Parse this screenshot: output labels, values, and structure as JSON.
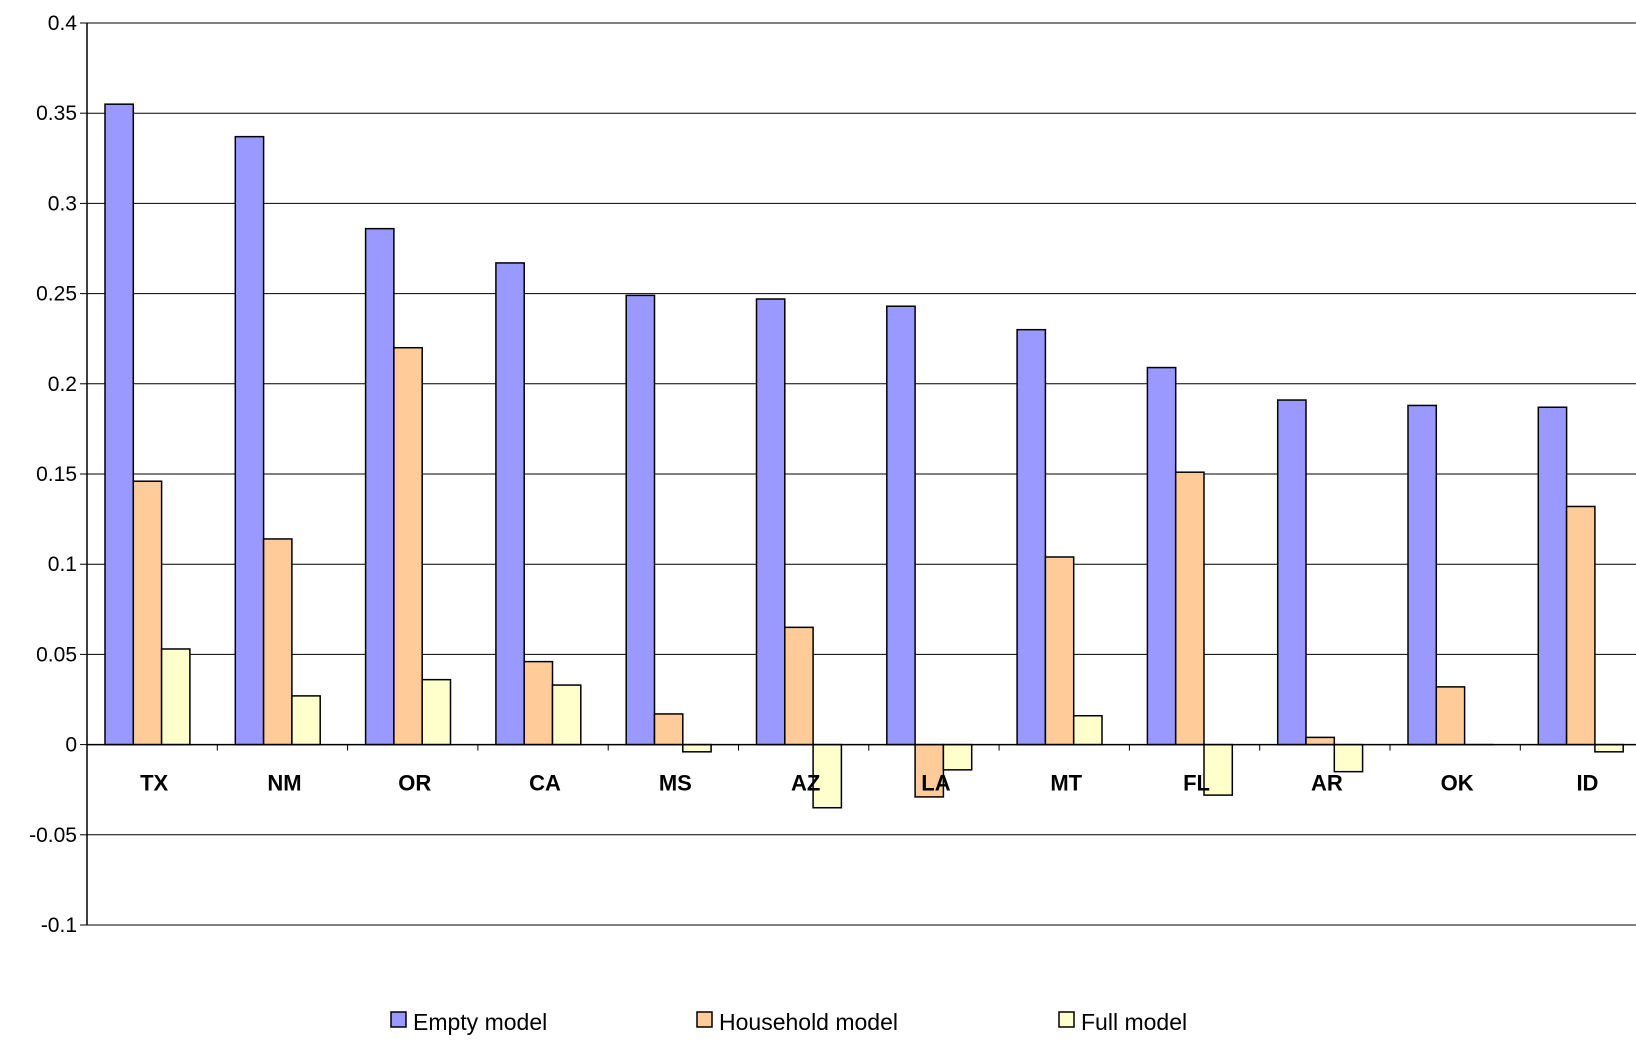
{
  "chart_data": {
    "type": "bar",
    "categories": [
      "TX",
      "NM",
      "OR",
      "CA",
      "MS",
      "AZ",
      "LA",
      "MT",
      "FL",
      "AR",
      "OK",
      "ID"
    ],
    "series": [
      {
        "name": "Empty model",
        "color": "#9999ff",
        "values": [
          0.355,
          0.337,
          0.286,
          0.267,
          0.249,
          0.247,
          0.243,
          0.23,
          0.209,
          0.191,
          0.188,
          0.187
        ]
      },
      {
        "name": "Household model",
        "color": "#ffcc99",
        "values": [
          0.146,
          0.114,
          0.22,
          0.046,
          0.017,
          0.065,
          -0.029,
          0.104,
          0.151,
          0.004,
          0.032,
          0.132
        ]
      },
      {
        "name": "Full model",
        "color": "#ffffcc",
        "values": [
          0.053,
          0.027,
          0.036,
          0.033,
          -0.004,
          -0.035,
          -0.014,
          0.016,
          -0.028,
          -0.015,
          0.0,
          -0.004
        ]
      }
    ],
    "ylim": [
      -0.1,
      0.4
    ],
    "yticks": [
      "0.4",
      "0.35",
      "0.3",
      "0.25",
      "0.2",
      "0.15",
      "0.1",
      "0.05",
      "0",
      "-0.05",
      "-0.1"
    ],
    "ytick_values": [
      0.4,
      0.35,
      0.3,
      0.25,
      0.2,
      0.15,
      0.1,
      0.05,
      0,
      -0.05,
      -0.1
    ],
    "grid": true,
    "legend": "bottom",
    "title": "",
    "xlabel": "",
    "ylabel": ""
  }
}
